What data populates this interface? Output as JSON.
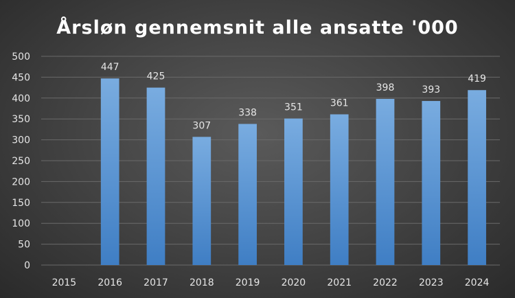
{
  "chart_data": {
    "type": "bar",
    "title": "Årsløn gennemsnit alle ansatte '000",
    "categories": [
      "2015",
      "2016",
      "2017",
      "2018",
      "2019",
      "2020",
      "2021",
      "2022",
      "2023",
      "2024"
    ],
    "values": [
      0,
      447,
      425,
      307,
      338,
      351,
      361,
      398,
      393,
      419
    ],
    "data_labels": [
      "",
      "447",
      "425",
      "307",
      "338",
      "351",
      "361",
      "398",
      "393",
      "419"
    ],
    "ylim": [
      0,
      500
    ],
    "yticks": [
      "0",
      "50",
      "100",
      "150",
      "200",
      "250",
      "300",
      "350",
      "400",
      "450",
      "500"
    ],
    "grid": true,
    "legend": "none",
    "colors": {
      "bar_top": "#79ace0",
      "bar_bottom": "#3f7ec4",
      "grid": "#6a6a6a",
      "text": "#e6e6e6",
      "title": "#ffffff"
    }
  }
}
